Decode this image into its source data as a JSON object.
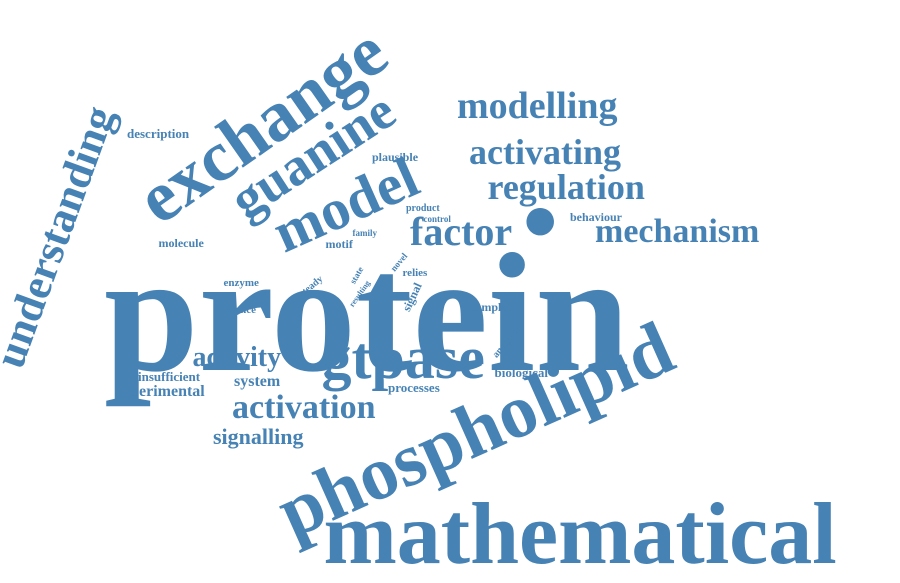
{
  "word_color": "#4682b4",
  "background": "#ffffff",
  "words": [
    {
      "id": "protein",
      "text": "protein"
    },
    {
      "id": "mathematical",
      "text": "mathematical"
    },
    {
      "id": "phospholipid",
      "text": "phospholipid"
    },
    {
      "id": "exchange",
      "text": "exchange"
    },
    {
      "id": "guanine",
      "text": "guanine"
    },
    {
      "id": "model",
      "text": "model"
    },
    {
      "id": "gtpase",
      "text": "gtpase"
    },
    {
      "id": "understanding",
      "text": "understanding"
    },
    {
      "id": "modelling",
      "text": "modelling"
    },
    {
      "id": "activating",
      "text": "activating"
    },
    {
      "id": "regulation",
      "text": "regulation"
    },
    {
      "id": "factor",
      "text": "factor"
    },
    {
      "id": "mechanism",
      "text": "mechanism"
    },
    {
      "id": "activation",
      "text": "activation"
    },
    {
      "id": "activity",
      "text": "activity"
    },
    {
      "id": "signalling",
      "text": "signalling"
    },
    {
      "id": "description",
      "text": "description"
    },
    {
      "id": "plausible",
      "text": "plausible"
    },
    {
      "id": "molecule",
      "text": "molecule"
    },
    {
      "id": "behaviour",
      "text": "behaviour"
    },
    {
      "id": "product",
      "text": "product"
    },
    {
      "id": "control",
      "text": "control"
    },
    {
      "id": "family",
      "text": "family"
    },
    {
      "id": "motif",
      "text": "motif"
    },
    {
      "id": "state",
      "text": "state"
    },
    {
      "id": "novel",
      "text": "novel"
    },
    {
      "id": "relies",
      "text": "relies"
    },
    {
      "id": "enzyme",
      "text": "enzyme"
    },
    {
      "id": "steady",
      "text": "steady"
    },
    {
      "id": "resulting",
      "text": "resulting"
    },
    {
      "id": "signal",
      "text": "signal"
    },
    {
      "id": "balance",
      "text": "balance"
    },
    {
      "id": "complete",
      "text": "complete"
    },
    {
      "id": "analysis",
      "text": "analysis"
    },
    {
      "id": "insufficient",
      "text": "insufficient"
    },
    {
      "id": "experimental",
      "text": "experimental"
    },
    {
      "id": "system",
      "text": "system"
    },
    {
      "id": "processes",
      "text": "processes"
    },
    {
      "id": "biological",
      "text": "biological"
    }
  ]
}
